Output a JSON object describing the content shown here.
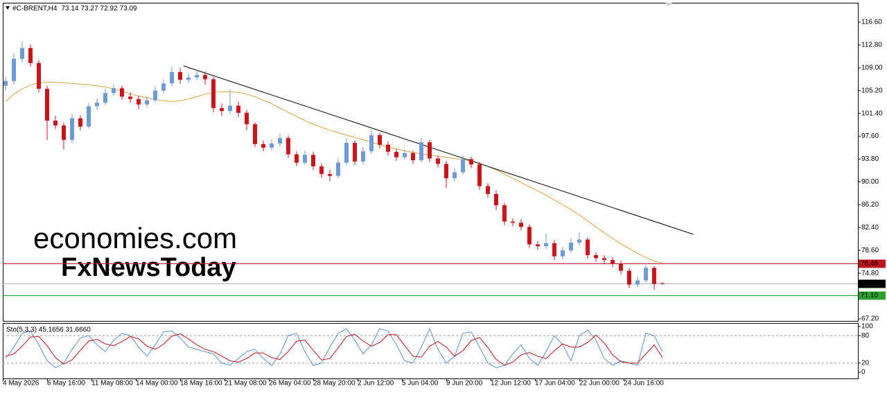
{
  "chart_data": [
    {
      "type": "candlestick",
      "title": "#C-BRENT,H4",
      "open": [
        106.0,
        106.8,
        110.5,
        112.3,
        109.8,
        105.5,
        100.2,
        99.4,
        97.0,
        100.6,
        99.2,
        102.6,
        103.2,
        104.8,
        105.6,
        104.2,
        103.8,
        102.9,
        103.6,
        105.2,
        106.4,
        108.3,
        107.0,
        107.4,
        107.8,
        107.1,
        102.3,
        101.8,
        102.7,
        101.5,
        99.6,
        96.3,
        95.7,
        96.4,
        97.3,
        94.6,
        93.2,
        94.5,
        92.6,
        91.3,
        91.0,
        93.2,
        96.5,
        93.4,
        95.1,
        97.8,
        96.2,
        95.0,
        94.1,
        94.8,
        93.6,
        96.6,
        93.9,
        93.0,
        90.6,
        91.6,
        93.8,
        92.9,
        89.3,
        88.0,
        86.1,
        83.4,
        83.2,
        82.5,
        79.6,
        79.3,
        79.8,
        77.6,
        78.6,
        79.9,
        80.4,
        77.8,
        77.3,
        77.0,
        76.4,
        75.2,
        72.9,
        73.6,
        75.7,
        73.14
      ],
      "high": [
        107.5,
        111.4,
        113.4,
        112.9,
        110.3,
        106.0,
        101.0,
        99.9,
        101.3,
        101.1,
        103.2,
        103.9,
        105.5,
        106.2,
        106.0,
        104.9,
        104.3,
        104.3,
        105.9,
        107.1,
        109.2,
        109.0,
        108.1,
        108.6,
        108.4,
        107.5,
        103.1,
        105.4,
        103.4,
        102.0,
        99.9,
        96.9,
        97.0,
        98.0,
        97.7,
        95.1,
        95.2,
        95.0,
        93.1,
        92.0,
        93.9,
        97.3,
        96.9,
        95.8,
        98.6,
        98.2,
        96.7,
        95.5,
        95.4,
        95.2,
        97.3,
        97.0,
        94.4,
        93.5,
        92.3,
        94.5,
        94.2,
        93.3,
        89.8,
        88.6,
        86.5,
        83.9,
        83.8,
        82.9,
        80.2,
        81.4,
        80.3,
        79.2,
        80.6,
        81.6,
        80.8,
        78.3,
        77.8,
        77.5,
        76.9,
        75.6,
        74.2,
        76.2,
        76.0,
        73.27
      ],
      "low": [
        105.2,
        106.2,
        109.9,
        109.2,
        104.9,
        97.0,
        98.8,
        95.4,
        96.5,
        98.6,
        98.9,
        102.0,
        102.8,
        104.3,
        103.7,
        103.2,
        102.1,
        102.4,
        103.2,
        104.8,
        105.9,
        106.3,
        106.5,
        106.9,
        106.2,
        101.6,
        101.0,
        101.2,
        100.8,
        98.6,
        95.8,
        95.1,
        95.2,
        95.9,
        94.0,
        92.6,
        92.8,
        92.0,
        90.7,
        90.1,
        90.6,
        92.8,
        92.8,
        92.9,
        94.7,
        95.6,
        94.4,
        93.5,
        93.7,
        93.0,
        93.2,
        93.3,
        92.4,
        89.0,
        90.1,
        91.2,
        92.3,
        88.7,
        87.4,
        85.3,
        82.8,
        82.6,
        81.9,
        79.0,
        78.7,
        78.8,
        77.0,
        77.1,
        78.2,
        79.4,
        77.2,
        76.7,
        76.4,
        75.8,
        74.6,
        72.3,
        72.4,
        73.2,
        72.0,
        72.92
      ],
      "close": [
        106.8,
        110.5,
        112.3,
        109.8,
        105.5,
        100.2,
        99.4,
        97.0,
        100.6,
        99.2,
        102.6,
        103.2,
        104.8,
        105.6,
        104.2,
        103.8,
        102.9,
        103.6,
        105.2,
        106.4,
        108.3,
        107.0,
        107.4,
        107.8,
        107.1,
        102.3,
        101.8,
        102.7,
        101.5,
        99.6,
        96.3,
        95.7,
        96.4,
        97.3,
        94.6,
        93.2,
        94.5,
        92.6,
        91.3,
        91.0,
        93.2,
        96.5,
        93.4,
        95.1,
        97.8,
        96.2,
        95.0,
        94.1,
        94.8,
        93.6,
        96.6,
        93.9,
        93.0,
        90.6,
        91.6,
        93.8,
        92.9,
        89.3,
        88.0,
        86.1,
        83.4,
        83.2,
        82.5,
        79.6,
        79.3,
        79.8,
        77.6,
        78.6,
        79.9,
        80.4,
        77.8,
        77.3,
        77.0,
        76.4,
        75.2,
        72.9,
        73.6,
        75.7,
        73.0,
        73.09
      ],
      "up_color": "#6e9ad6",
      "down_color": "#c8161d",
      "ma": {
        "color": "#e0a040",
        "values": [
          103.4,
          104.6,
          105.5,
          106.1,
          106.5,
          106.6,
          106.6,
          106.5,
          106.4,
          106.3,
          106.2,
          106.0,
          105.8,
          105.5,
          105.1,
          104.7,
          104.3,
          104.0,
          103.7,
          103.5,
          103.4,
          103.5,
          103.8,
          104.2,
          104.6,
          104.9,
          105.0,
          105.0,
          104.9,
          104.6,
          104.2,
          103.6,
          103.0,
          102.3,
          101.6,
          100.9,
          100.2,
          99.6,
          99.1,
          98.6,
          98.2,
          97.8,
          97.4,
          97.0,
          96.6,
          96.2,
          95.8,
          95.5,
          95.2,
          94.9,
          94.7,
          94.5,
          94.3,
          94.1,
          93.9,
          93.7,
          93.5,
          93.1,
          92.6,
          92.0,
          91.3,
          90.6,
          89.9,
          89.2,
          88.5,
          87.8,
          87.0,
          86.2,
          85.4,
          84.5,
          83.5,
          82.5,
          81.5,
          80.6,
          79.7,
          78.9,
          78.1,
          77.4,
          76.8,
          76.5
        ]
      },
      "trendline": {
        "x": [
          21.4,
          82.7
        ],
        "y": [
          109.33,
          81.28
        ],
        "color": "#000000"
      },
      "levels": [
        {
          "value": 76.48,
          "color": "#c0141e"
        },
        {
          "value": 73.09,
          "color": "#b0b0b0",
          "label_bg": "#000000"
        },
        {
          "value": 71.1,
          "label": "71.10",
          "color": "#2ca02c"
        }
      ],
      "ylim": [
        66.85,
        119.83
      ],
      "yticks": [
        {
          "value": 116.6,
          "label": "116.60"
        },
        {
          "value": 112.8,
          "label": "112.80"
        },
        {
          "value": 109,
          "label": "109.00"
        },
        {
          "value": 105.2,
          "label": "105.20"
        },
        {
          "value": 101.4,
          "label": "101.40"
        },
        {
          "value": 97.6,
          "label": "97.60"
        },
        {
          "value": 93.8,
          "label": "93.80"
        },
        {
          "value": 90,
          "label": "90.00"
        },
        {
          "value": 86.2,
          "label": "86.20"
        },
        {
          "value": 82.4,
          "label": "82.40"
        },
        {
          "value": 78.6,
          "label": "78.60"
        },
        {
          "value": 74.8,
          "label": "74.80"
        },
        {
          "value": 67.2,
          "label": "67.20"
        }
      ],
      "watermarks": [
        "economies.com",
        "FxNewsToday"
      ]
    },
    {
      "type": "line",
      "title": "Sto(5,3,3) 45.1656 31.6660",
      "series": [
        {
          "color": "#5b8fd6",
          "values": [
            30,
            55,
            85,
            90,
            60,
            25,
            10,
            20,
            50,
            75,
            80,
            60,
            45,
            70,
            85,
            80,
            55,
            35,
            60,
            88,
            90,
            75,
            55,
            50,
            45,
            40,
            20,
            15,
            30,
            45,
            50,
            30,
            15,
            40,
            80,
            85,
            45,
            15,
            20,
            55,
            85,
            95,
            70,
            40,
            60,
            95,
            90,
            60,
            25,
            20,
            55,
            95,
            50,
            20,
            35,
            85,
            88,
            55,
            20,
            10,
            15,
            40,
            60,
            30,
            15,
            45,
            80,
            60,
            25,
            80,
            92,
            70,
            30,
            15,
            25,
            20,
            15,
            85,
            80,
            45.1656
          ]
        },
        {
          "color": "#c0141e",
          "values": [
            35,
            40,
            57,
            77,
            78,
            58,
            32,
            18,
            27,
            48,
            68,
            72,
            62,
            58,
            67,
            78,
            73,
            57,
            50,
            61,
            79,
            84,
            73,
            60,
            50,
            45,
            35,
            25,
            22,
            30,
            42,
            42,
            32,
            28,
            45,
            68,
            70,
            48,
            27,
            30,
            53,
            78,
            83,
            68,
            57,
            65,
            82,
            82,
            58,
            35,
            33,
            57,
            67,
            55,
            35,
            47,
            69,
            76,
            54,
            28,
            15,
            22,
            38,
            43,
            35,
            30,
            47,
            62,
            55,
            55,
            65,
            81,
            64,
            38,
            23,
            20,
            20,
            40,
            60,
            31.666
          ]
        }
      ],
      "ylim": [
        -13.6,
        107.6
      ],
      "yticks": [
        100,
        80,
        20,
        0
      ],
      "x_labels": [
        "4 May 2026",
        "6 May 16:00",
        "11 May 08:00",
        "14 May 00:00",
        "18 May 16:00",
        "21 May 08:00",
        "26 May 04:00",
        "28 May 20:00",
        "2 Jun 12:00",
        "5 Jun 04:00",
        "9 Jun 20:00",
        "12 Jun 12:00",
        "17 Jun 04:00",
        "22 Jun 00:00",
        "24 Jun 16:00"
      ]
    }
  ]
}
